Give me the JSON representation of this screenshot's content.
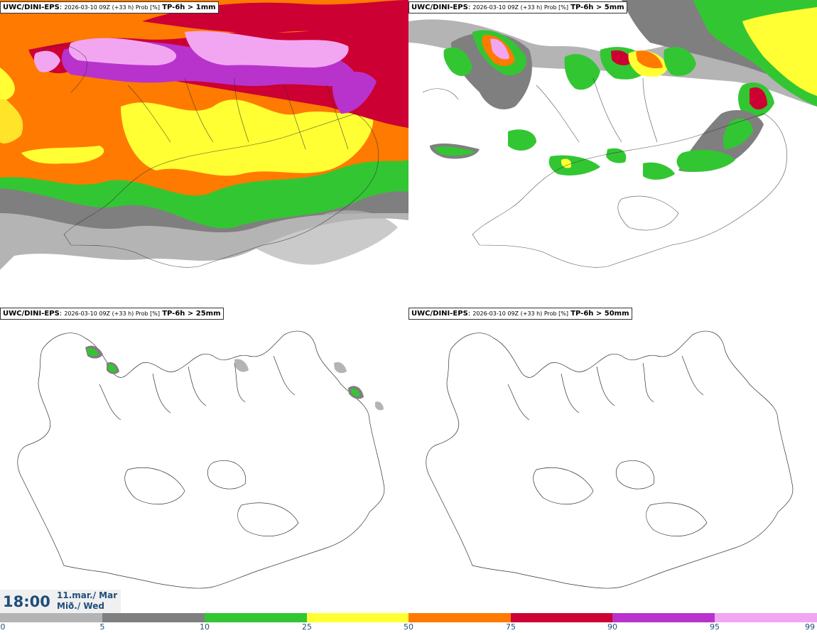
{
  "panels": [
    {
      "model": "UWC/DINI-EPS",
      "run": "2026-03-10 09Z (+33 h) Prob [%]",
      "param": "TP-6h > 1mm"
    },
    {
      "model": "UWC/DINI-EPS",
      "run": "2026-03-10 09Z (+33 h) Prob [%]",
      "param": "TP-6h > 5mm"
    },
    {
      "model": "UWC/DINI-EPS",
      "run": "2026-03-10 09Z (+33 h) Prob [%]",
      "param": "TP-6h > 25mm"
    },
    {
      "model": "UWC/DINI-EPS",
      "run": "2026-03-10 09Z (+33 h) Prob [%]",
      "param": "TP-6h > 50mm"
    }
  ],
  "valid_time": {
    "time": "18:00",
    "date_line1": "11.mar./ Mar",
    "date_line2": "Mið./ Wed"
  },
  "colorbar": {
    "ticks": [
      "0",
      "5",
      "10",
      "25",
      "50",
      "75",
      "90",
      "95",
      "99"
    ],
    "colors": [
      "#ffffff",
      "#b4b4b4",
      "#7f7f7f",
      "#33c633",
      "#ffff33",
      "#ff7a00",
      "#cc0033",
      "#b833cc",
      "#f2a6f2"
    ]
  },
  "map_colors": {
    "grey_light": "#b4b4b4",
    "grey_dark": "#7f7f7f",
    "green": "#33c633",
    "yellow": "#ffff33",
    "orange": "#ff7a00",
    "red": "#cc0033",
    "purple": "#b833cc",
    "pink": "#f2a6f2"
  }
}
